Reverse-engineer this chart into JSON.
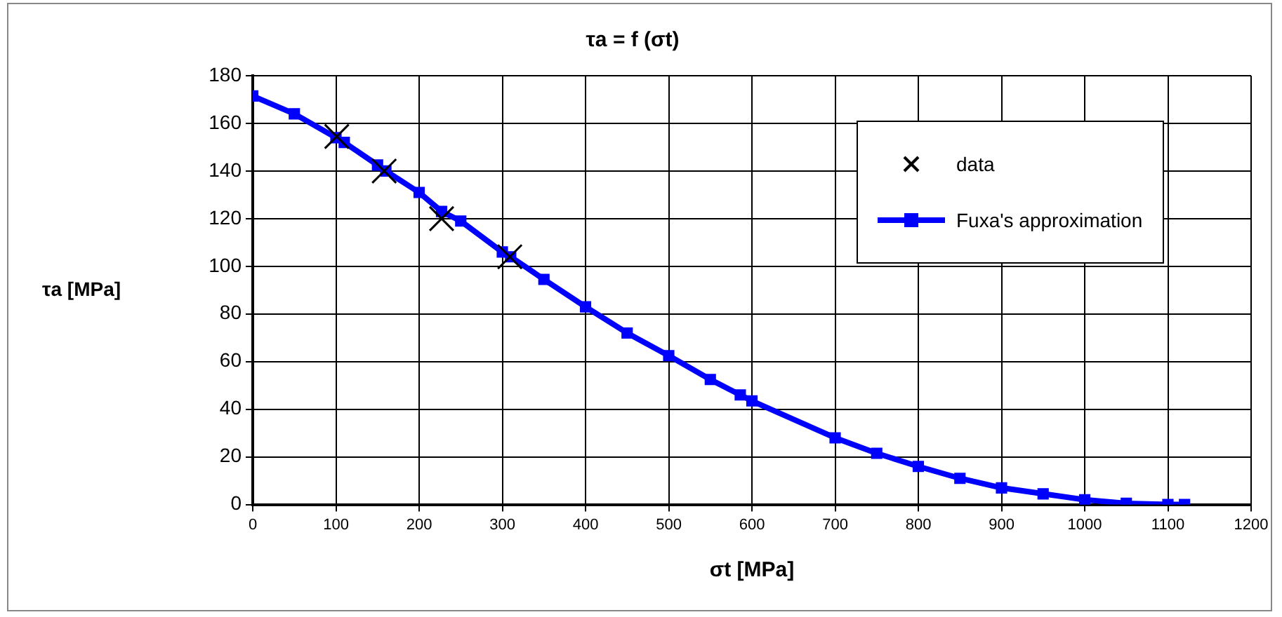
{
  "chart_data": {
    "type": "line",
    "title": "τa = f (σt)",
    "xlabel": "σt [MPa]",
    "ylabel": "τa [MPa]",
    "xlim": [
      0,
      1200
    ],
    "xticks": [
      0,
      100,
      200,
      300,
      400,
      500,
      600,
      700,
      800,
      900,
      1000,
      1100,
      1200
    ],
    "ylim": [
      0,
      180
    ],
    "yticks": [
      0,
      20,
      40,
      60,
      80,
      100,
      120,
      140,
      160,
      180
    ],
    "grid": true,
    "legend": "top right",
    "series": [
      {
        "name": "data",
        "type": "scatter",
        "marker": "cross",
        "color": "#000000",
        "x": [
          101,
          158,
          227,
          309
        ],
        "values": [
          154.5,
          140,
          120,
          104
        ]
      },
      {
        "name": "Fuxa's approximation",
        "type": "line",
        "marker": "square",
        "line_style": "solid",
        "color": "#0000ff",
        "x": [
          0,
          50,
          100,
          110,
          150,
          160,
          200,
          227,
          250,
          300,
          310,
          350,
          400,
          450,
          500,
          550,
          586,
          600,
          700,
          750,
          800,
          850,
          900,
          950,
          1000,
          1050,
          1100,
          1120
        ],
        "values": [
          171.5,
          164,
          154,
          152,
          142.5,
          140,
          131,
          123,
          119,
          106,
          104,
          94.5,
          83,
          72,
          62.5,
          52.5,
          46,
          43.5,
          28,
          21.5,
          16,
          11,
          7,
          4.5,
          2,
          0.5,
          0,
          0
        ]
      }
    ]
  }
}
